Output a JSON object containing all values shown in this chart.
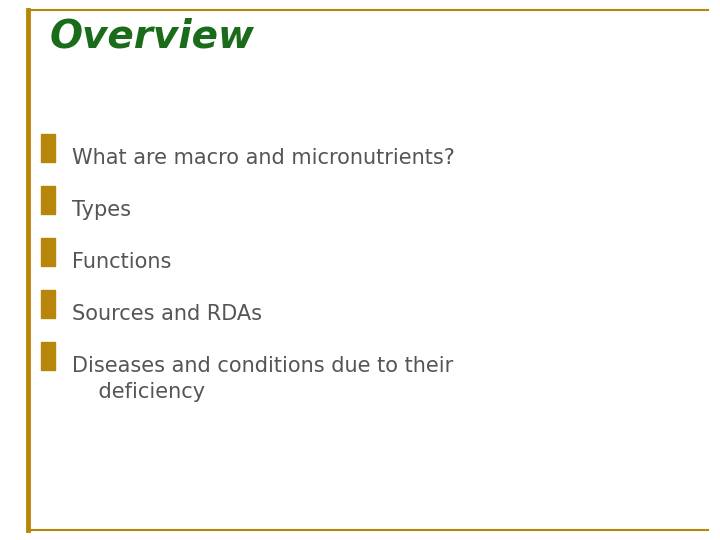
{
  "title": "Overview",
  "title_color": "#1a6b1a",
  "title_fontsize": 28,
  "title_style": "italic",
  "title_weight": "bold",
  "bullet_color": "#b8860b",
  "text_color": "#555555",
  "text_fontsize": 15,
  "background_color": "#ffffff",
  "border_color": "#b8860b",
  "bullet_items": [
    "What are macro and micronutrients?",
    "Types",
    "Functions",
    "Sources and RDAs",
    "Diseases and conditions due to their\n    deficiency"
  ],
  "left_bar_color": "#b8860b",
  "top_border_color": "#b8860b",
  "bottom_border_color": "#b8860b",
  "fig_width": 7.2,
  "fig_height": 5.4,
  "dpi": 100
}
